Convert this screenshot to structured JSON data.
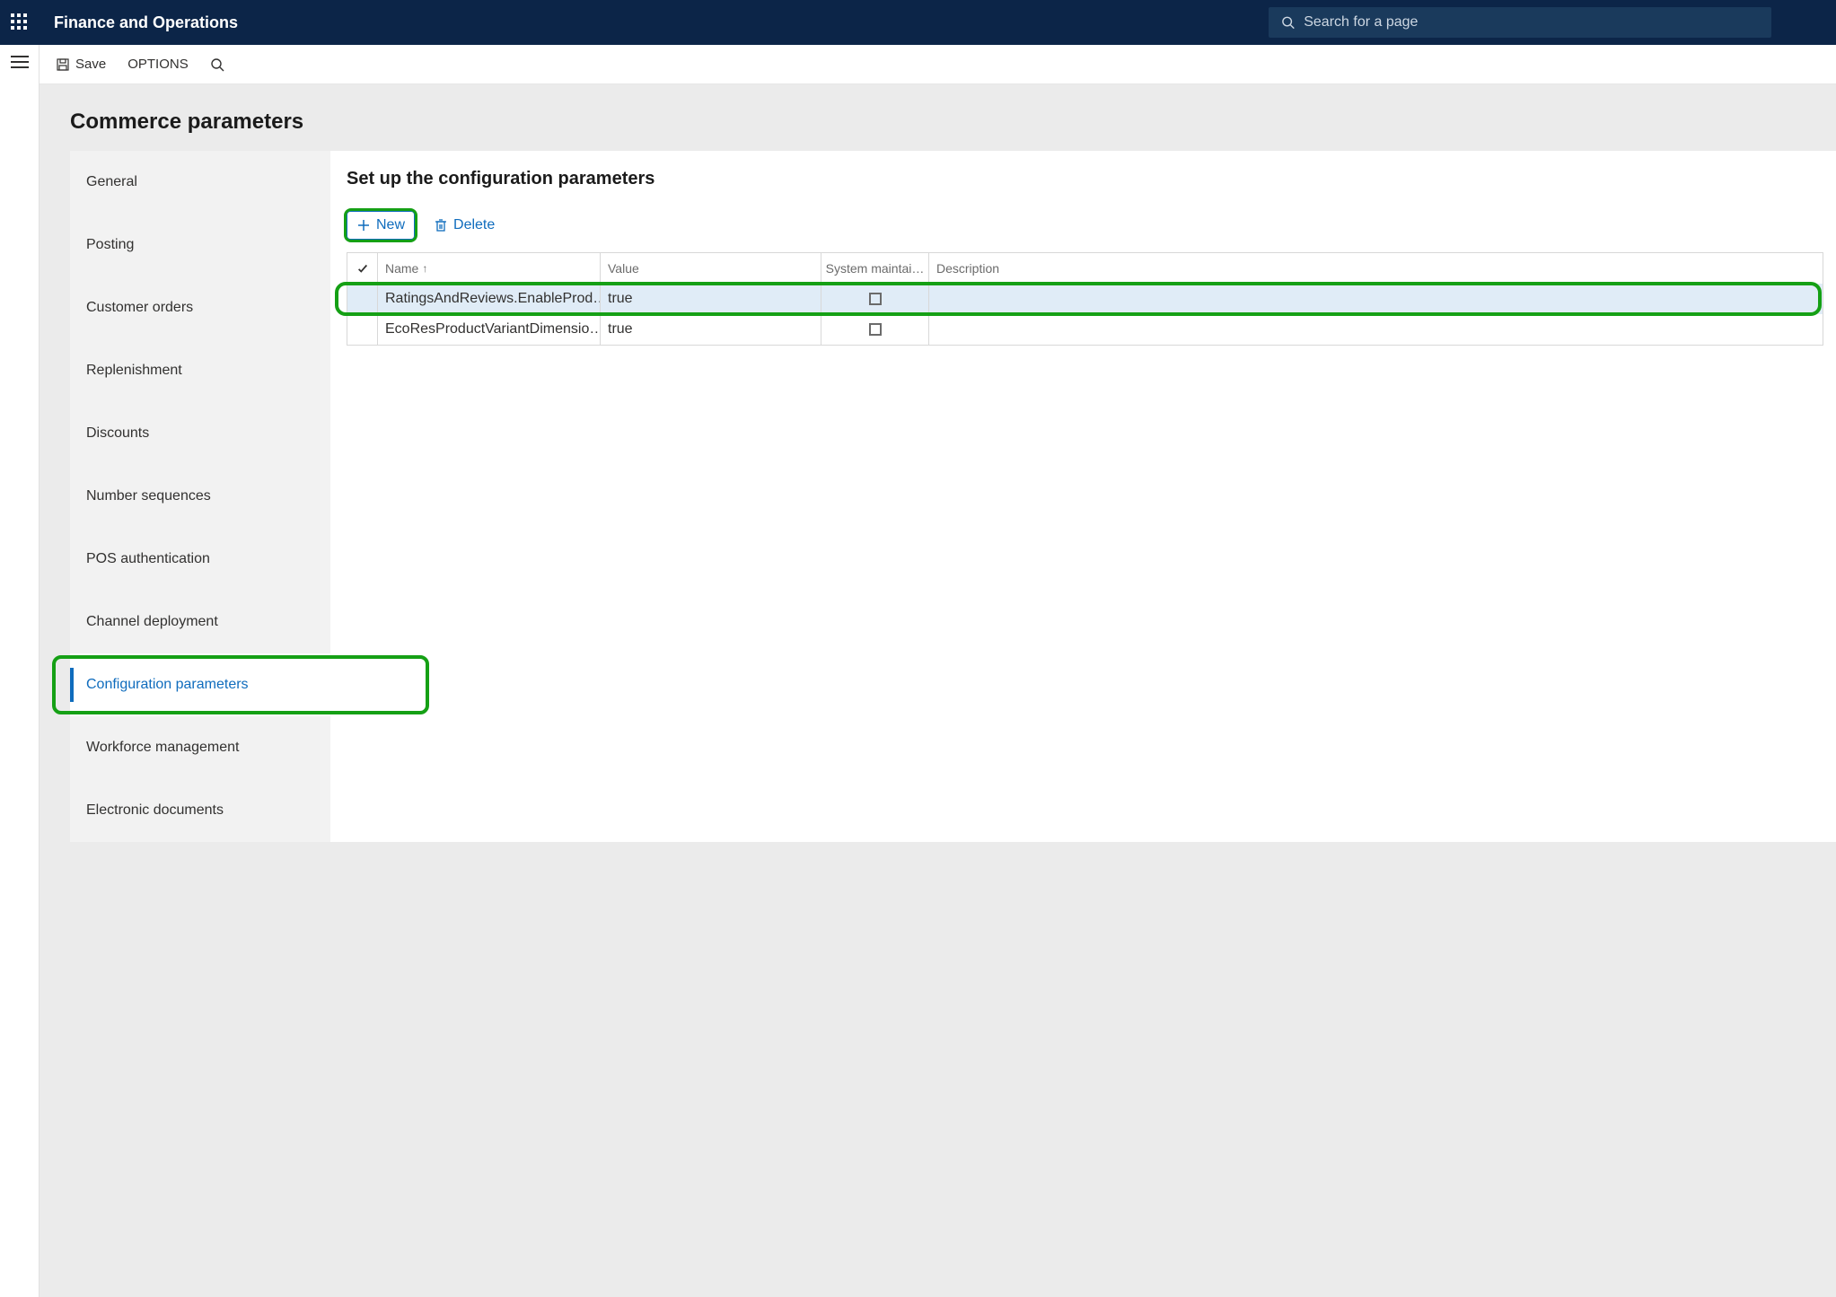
{
  "colors": {
    "topbar_bg": "#0c2548",
    "accent": "#0f6cbd",
    "highlight": "#15a015",
    "row_selected_bg": "#e0ecf7",
    "page_bg": "#ebebeb"
  },
  "topbar": {
    "app_title": "Finance and Operations",
    "search_placeholder": "Search for a page"
  },
  "actionbar": {
    "save_label": "Save",
    "options_label": "OPTIONS"
  },
  "page": {
    "title": "Commerce parameters"
  },
  "side_tabs": {
    "items": [
      {
        "label": "General",
        "active": false
      },
      {
        "label": "Posting",
        "active": false
      },
      {
        "label": "Customer orders",
        "active": false
      },
      {
        "label": "Replenishment",
        "active": false
      },
      {
        "label": "Discounts",
        "active": false
      },
      {
        "label": "Number sequences",
        "active": false
      },
      {
        "label": "POS authentication",
        "active": false
      },
      {
        "label": "Channel deployment",
        "active": false
      },
      {
        "label": "Configuration parameters",
        "active": true,
        "highlighted": true
      },
      {
        "label": "Workforce management",
        "active": false
      },
      {
        "label": "Electronic documents",
        "active": false
      }
    ]
  },
  "panel": {
    "title": "Set up the configuration parameters",
    "toolbar": {
      "new_label": "New",
      "delete_label": "Delete"
    },
    "grid": {
      "columns": {
        "name": "Name",
        "value": "Value",
        "system": "System maintai…",
        "description": "Description"
      },
      "sort_column": "name",
      "sort_dir": "asc",
      "rows": [
        {
          "name": "RatingsAndReviews.EnableProd…",
          "value": "true",
          "system": false,
          "description": "",
          "selected": true,
          "highlighted": true
        },
        {
          "name": "EcoResProductVariantDimensio…",
          "value": "true",
          "system": false,
          "description": "",
          "selected": false
        }
      ]
    }
  }
}
